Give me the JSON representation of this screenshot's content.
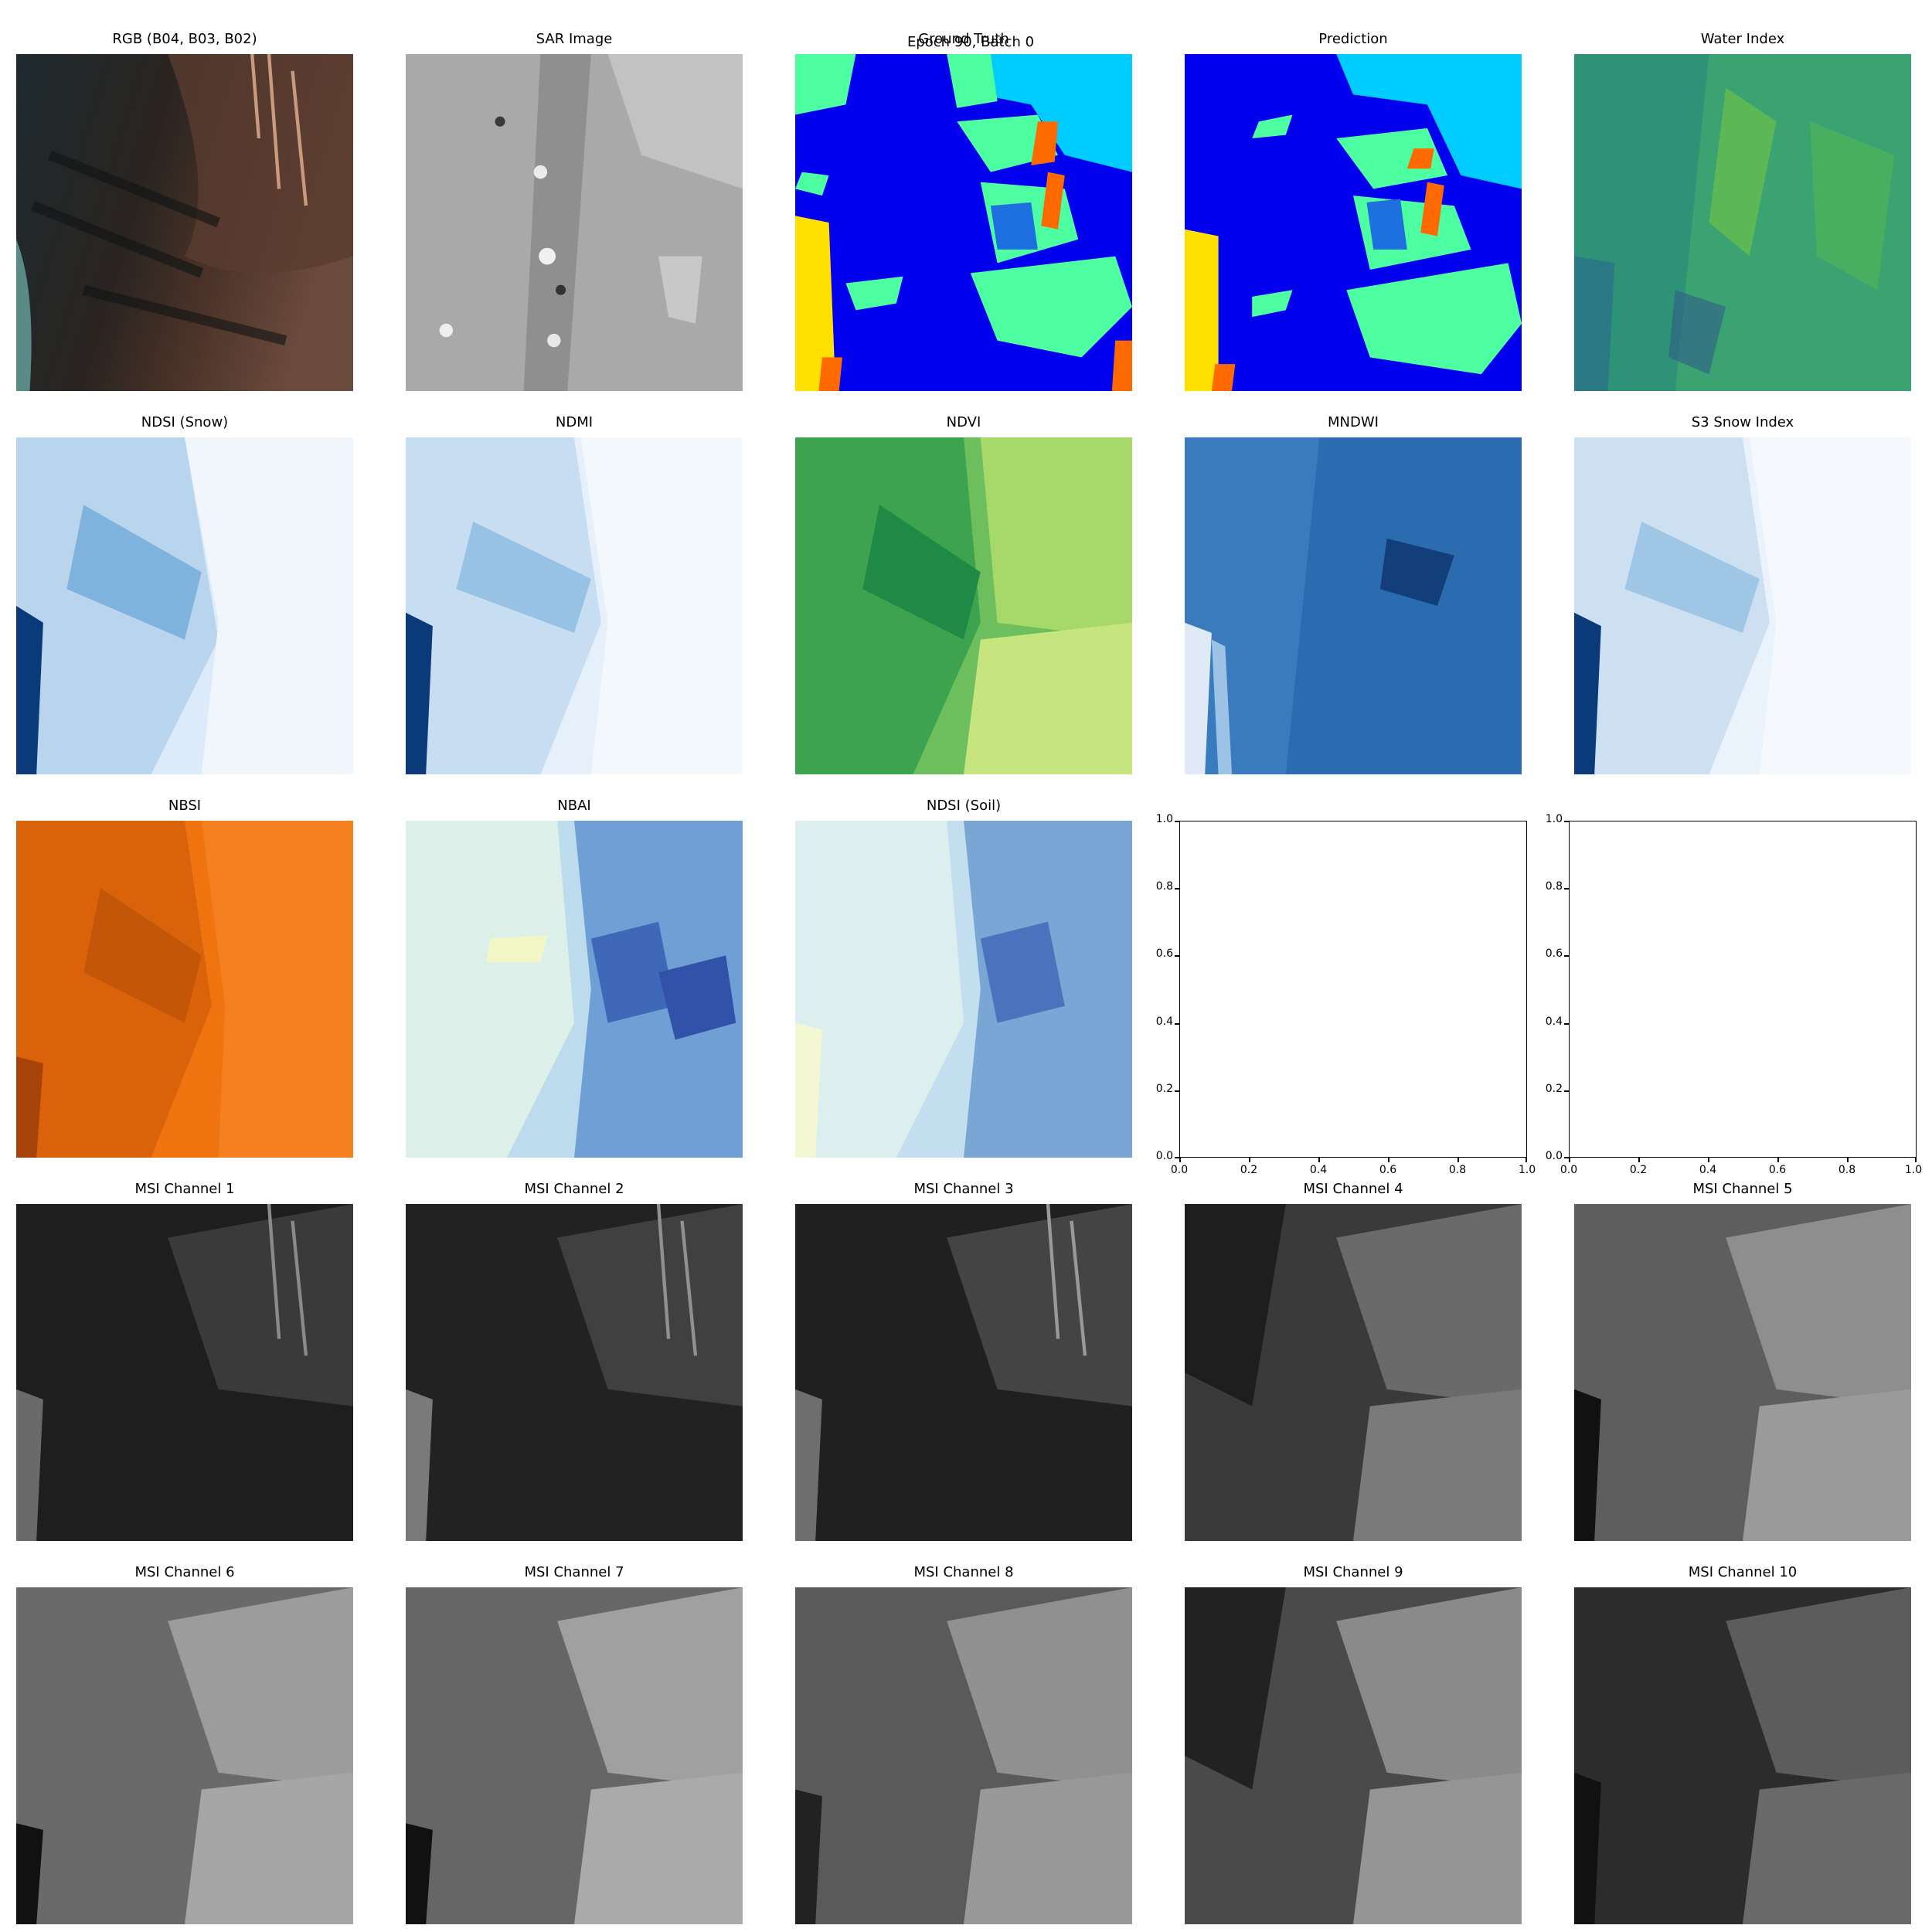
{
  "figure": {
    "suptitle": "Epoch 90, Batch 0"
  },
  "panels": [
    {
      "title": "RGB (B04, B03, B02)",
      "kind": "rgb"
    },
    {
      "title": "SAR Image",
      "kind": "sar"
    },
    {
      "title": "Ground Truth",
      "kind": "gt"
    },
    {
      "title": "Prediction",
      "kind": "pred"
    },
    {
      "title": "Water Index",
      "kind": "water"
    },
    {
      "title": "NDSI (Snow)",
      "kind": "blues"
    },
    {
      "title": "NDMI",
      "kind": "blues-light"
    },
    {
      "title": "NDVI",
      "kind": "ndvi"
    },
    {
      "title": "MNDWI",
      "kind": "mndwi"
    },
    {
      "title": "S3 Snow Index",
      "kind": "blues-light"
    },
    {
      "title": "NBSI",
      "kind": "nbsi"
    },
    {
      "title": "NBAI",
      "kind": "nbai"
    },
    {
      "title": "NDSI (Soil)",
      "kind": "nbai"
    },
    {
      "title": "MSI Channel 1",
      "kind": "gray-dark"
    },
    {
      "title": "MSI Channel 2",
      "kind": "gray-dark"
    },
    {
      "title": "MSI Channel 3",
      "kind": "gray-dark"
    },
    {
      "title": "MSI Channel 4",
      "kind": "gray-mid"
    },
    {
      "title": "MSI Channel 5",
      "kind": "gray-light"
    },
    {
      "title": "MSI Channel 6",
      "kind": "gray-light"
    },
    {
      "title": "MSI Channel 7",
      "kind": "gray-light"
    },
    {
      "title": "MSI Channel 8",
      "kind": "gray-mid"
    },
    {
      "title": "MSI Channel 9",
      "kind": "gray-mid"
    },
    {
      "title": "MSI Channel 10",
      "kind": "gray-dark"
    }
  ],
  "empty_axes": {
    "tick_labels": [
      "0.0",
      "0.2",
      "0.4",
      "0.6",
      "0.8",
      "1.0"
    ]
  }
}
